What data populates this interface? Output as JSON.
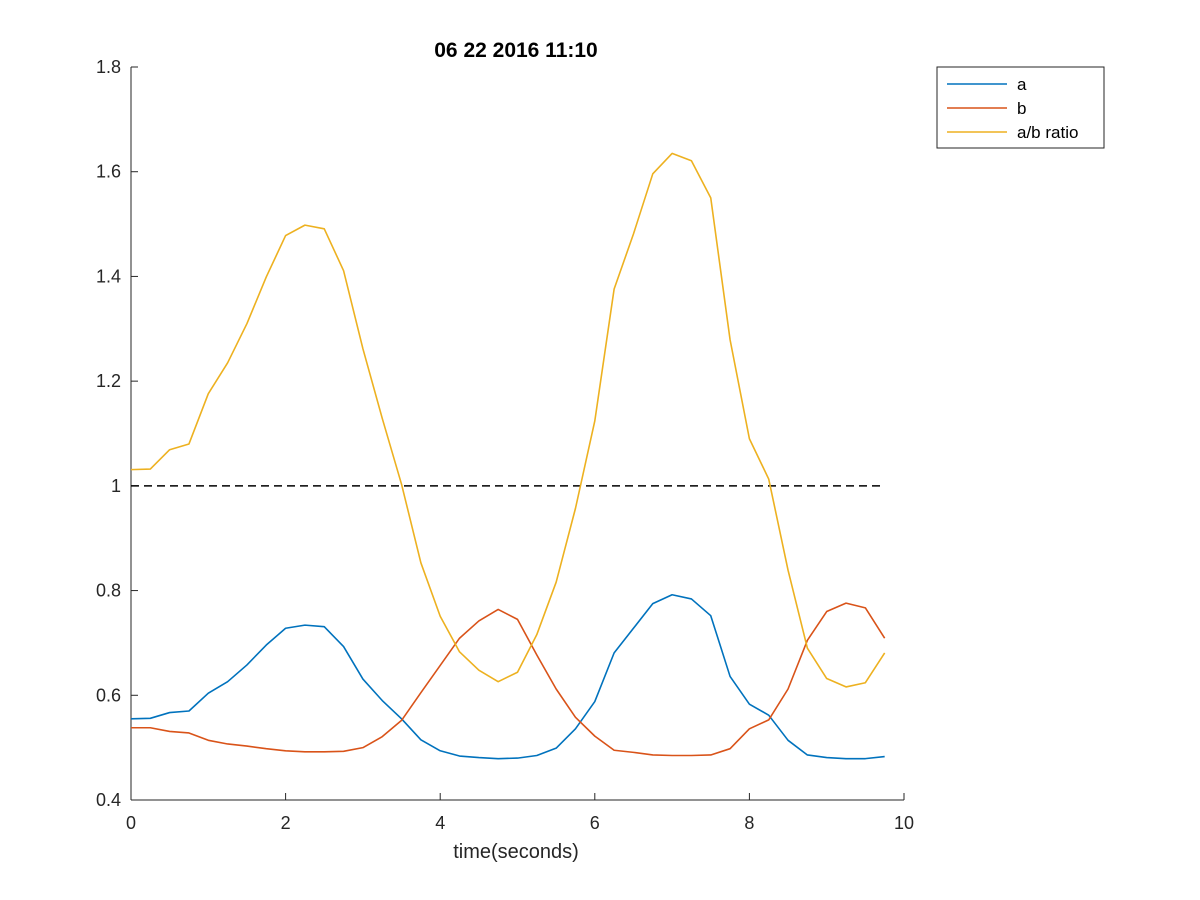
{
  "chart_data": {
    "type": "line",
    "title": "06 22 2016 11:10",
    "xlabel": "time(seconds)",
    "ylabel": "",
    "xlim": [
      0,
      10
    ],
    "ylim": [
      0.4,
      1.8
    ],
    "xticks": [
      0,
      2,
      4,
      6,
      8,
      10
    ],
    "xtick_labels": [
      "0",
      "2",
      "4",
      "6",
      "8",
      "10"
    ],
    "yticks": [
      0.4,
      0.6,
      0.8,
      1.0,
      1.2,
      1.4,
      1.6,
      1.8
    ],
    "ytick_labels": [
      "0.4",
      "0.6",
      "0.8",
      "1",
      "1.2",
      "1.4",
      "1.6",
      "1.8"
    ],
    "grid": false,
    "legend_position": "top-right",
    "x": [
      0,
      0.25,
      0.5,
      0.75,
      1.0,
      1.25,
      1.5,
      1.75,
      2.0,
      2.25,
      2.5,
      2.75,
      3.0,
      3.25,
      3.5,
      3.75,
      4.0,
      4.25,
      4.5,
      4.75,
      5.0,
      5.25,
      5.5,
      5.75,
      6.0,
      6.25,
      6.5,
      6.75,
      7.0,
      7.25,
      7.5,
      7.75,
      8.0,
      8.25,
      8.5,
      8.75,
      9.0,
      9.25,
      9.5,
      9.75
    ],
    "series": [
      {
        "name": "a",
        "color": "#0072BD",
        "values": [
          0.555,
          0.556,
          0.567,
          0.57,
          0.604,
          0.626,
          0.658,
          0.696,
          0.728,
          0.734,
          0.731,
          0.693,
          0.631,
          0.59,
          0.555,
          0.515,
          0.494,
          0.484,
          0.481,
          0.479,
          0.48,
          0.485,
          0.499,
          0.536,
          0.588,
          0.681,
          0.728,
          0.775,
          0.792,
          0.784,
          0.752,
          0.636,
          0.583,
          0.562,
          0.514,
          0.486,
          0.481,
          0.479,
          0.479,
          0.483
        ]
      },
      {
        "name": "b",
        "color": "#D95319",
        "values": [
          0.538,
          0.538,
          0.531,
          0.528,
          0.514,
          0.507,
          0.503,
          0.498,
          0.494,
          0.492,
          0.492,
          0.493,
          0.5,
          0.521,
          0.552,
          0.605,
          0.657,
          0.709,
          0.742,
          0.764,
          0.745,
          0.677,
          0.612,
          0.558,
          0.522,
          0.495,
          0.491,
          0.486,
          0.485,
          0.485,
          0.486,
          0.498,
          0.536,
          0.553,
          0.612,
          0.705,
          0.76,
          0.776,
          0.767,
          0.709
        ]
      },
      {
        "name": "a/b ratio",
        "color": "#EDB120",
        "values": [
          1.031,
          1.032,
          1.069,
          1.08,
          1.176,
          1.235,
          1.31,
          1.399,
          1.478,
          1.498,
          1.491,
          1.411,
          1.262,
          1.129,
          1.003,
          0.853,
          0.751,
          0.683,
          0.648,
          0.626,
          0.644,
          0.716,
          0.816,
          0.957,
          1.124,
          1.376,
          1.481,
          1.596,
          1.635,
          1.621,
          1.55,
          1.279,
          1.09,
          1.013,
          0.839,
          0.69,
          0.632,
          0.616,
          0.624,
          0.681
        ]
      }
    ],
    "reference_line": {
      "y": 1.0,
      "x_range": [
        0,
        9.75
      ],
      "style": "dashed",
      "color": "#000000"
    }
  }
}
